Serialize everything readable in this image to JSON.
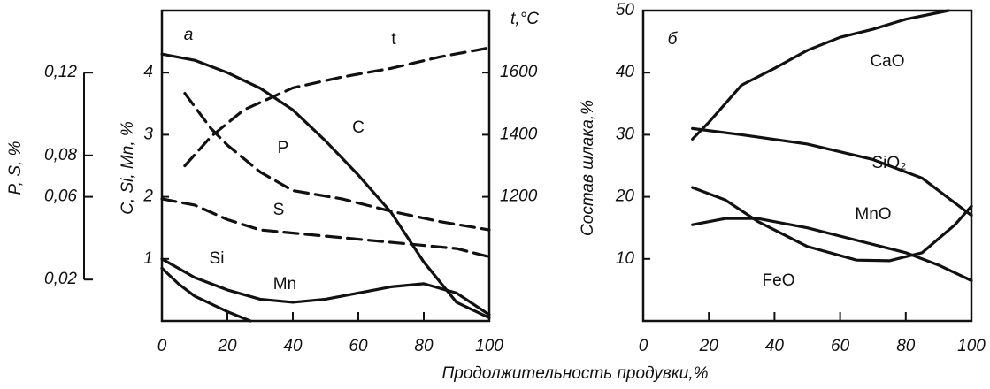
{
  "xlabel": "Продолжительность продувки,%",
  "chart_data": [
    {
      "type": "line",
      "panel_label": "а",
      "ylabel": "C, Si, Mn, %",
      "y2label": "P, S, %",
      "y3label": "t,°C",
      "xlim": [
        0,
        100
      ],
      "xticks": [
        0,
        20,
        40,
        60,
        80,
        100
      ],
      "ylim": [
        0,
        5
      ],
      "yticks": [
        1,
        2,
        3,
        4
      ],
      "y2lim": [
        0,
        0.15
      ],
      "y2ticks": [
        {
          "value": 0.02,
          "label": "0,02"
        },
        {
          "value": 0.06,
          "label": "0,06"
        },
        {
          "value": 0.08,
          "label": "0,08"
        },
        {
          "value": 0.12,
          "label": "0,12"
        }
      ],
      "y3lim": [
        800,
        1800
      ],
      "y3ticks": [
        1200,
        1400,
        1600
      ],
      "series": [
        {
          "name": "t",
          "axis": "y3",
          "dashed": true,
          "color": "#111",
          "x": [
            7,
            15,
            25,
            40,
            55,
            70,
            85,
            100
          ],
          "values": [
            1300,
            1394,
            1480,
            1551,
            1586,
            1614,
            1651,
            1680
          ]
        },
        {
          "name": "P",
          "axis": "y2",
          "dashed": true,
          "color": "#111",
          "x": [
            7,
            15,
            20,
            30,
            40,
            55,
            70,
            85,
            100
          ],
          "values": [
            0.11,
            0.093,
            0.085,
            0.072,
            0.063,
            0.059,
            0.053,
            0.048,
            0.044
          ]
        },
        {
          "name": "C",
          "axis": "y",
          "dashed": false,
          "color": "#111",
          "x": [
            0,
            10,
            20,
            30,
            40,
            50,
            60,
            70,
            80,
            90,
            100
          ],
          "values": [
            4.3,
            4.2,
            4.0,
            3.75,
            3.4,
            2.9,
            2.35,
            1.75,
            0.95,
            0.3,
            0.05
          ]
        },
        {
          "name": "S",
          "axis": "y2",
          "dashed": true,
          "color": "#111",
          "x": [
            0,
            10,
            20,
            30,
            50,
            70,
            90,
            100
          ],
          "values": [
            0.059,
            0.056,
            0.049,
            0.044,
            0.041,
            0.038,
            0.035,
            0.031
          ]
        },
        {
          "name": "Si",
          "axis": "y",
          "dashed": false,
          "color": "#111",
          "x": [
            0,
            5,
            10,
            20,
            27
          ],
          "values": [
            0.85,
            0.6,
            0.4,
            0.15,
            0
          ]
        },
        {
          "name": "Mn",
          "axis": "y",
          "dashed": false,
          "color": "#111",
          "x": [
            0,
            10,
            20,
            30,
            40,
            50,
            60,
            70,
            80,
            90,
            100
          ],
          "values": [
            1.0,
            0.7,
            0.5,
            0.35,
            0.3,
            0.35,
            0.45,
            0.55,
            0.6,
            0.45,
            0.1
          ]
        }
      ]
    },
    {
      "type": "line",
      "panel_label": "б",
      "ylabel": "Состав шлака,%",
      "xlim": [
        0,
        100
      ],
      "xticks": [
        0,
        20,
        40,
        60,
        80,
        100
      ],
      "ylim": [
        0,
        50
      ],
      "yticks": [
        10,
        20,
        30,
        40,
        50
      ],
      "series": [
        {
          "name": "CaO",
          "axis": "y",
          "dashed": false,
          "color": "#111",
          "x": [
            15,
            20,
            30,
            40,
            50,
            60,
            70,
            80,
            93
          ],
          "values": [
            29.3,
            32,
            38,
            40.7,
            43.6,
            45.7,
            47,
            48.6,
            50
          ]
        },
        {
          "name": "SiO₂",
          "axis": "y",
          "dashed": false,
          "color": "#111",
          "x": [
            15,
            30,
            50,
            70,
            85,
            100
          ],
          "values": [
            31,
            30,
            28.5,
            26,
            23,
            17
          ]
        },
        {
          "name": "MnO",
          "axis": "y",
          "dashed": false,
          "color": "#111",
          "x": [
            15,
            25,
            35,
            50,
            65,
            75,
            85,
            95,
            100
          ],
          "values": [
            21.5,
            19.5,
            16,
            12,
            9.8,
            9.7,
            11,
            15.5,
            18.5
          ]
        },
        {
          "name": "FeO",
          "axis": "y",
          "dashed": false,
          "color": "#111",
          "x": [
            15,
            25,
            35,
            50,
            65,
            80,
            90,
            100
          ],
          "values": [
            15.5,
            16.5,
            16.5,
            15,
            13,
            11,
            9,
            6.5
          ]
        }
      ]
    }
  ]
}
